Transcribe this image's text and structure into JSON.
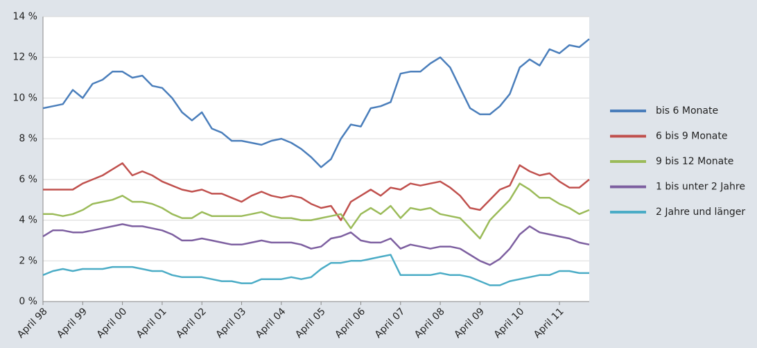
{
  "chart_data": {
    "type": "line",
    "categories": [
      "April 98",
      null,
      null,
      null,
      "April 99",
      null,
      null,
      null,
      "April 00",
      null,
      null,
      null,
      "April 01",
      null,
      null,
      null,
      "April 02",
      null,
      null,
      null,
      "April 03",
      null,
      null,
      null,
      "April 04",
      null,
      null,
      null,
      "April 05",
      null,
      null,
      null,
      "April 06",
      null,
      null,
      null,
      "April 07",
      null,
      null,
      null,
      "April 08",
      null,
      null,
      null,
      "April 09",
      null,
      null,
      null,
      "April 10",
      null,
      null,
      null,
      "April 11",
      null,
      null,
      null
    ],
    "series": [
      {
        "name": "bis 6 Monate",
        "color": "#4a7ebb",
        "values": [
          9.5,
          9.6,
          9.7,
          10.4,
          10.0,
          10.7,
          10.9,
          11.3,
          11.3,
          11.0,
          11.1,
          10.6,
          10.5,
          10.0,
          9.3,
          8.9,
          9.3,
          8.5,
          8.3,
          7.9,
          7.9,
          7.8,
          7.7,
          7.9,
          8.0,
          7.8,
          7.5,
          7.1,
          6.6,
          7.0,
          8.0,
          8.7,
          8.6,
          9.5,
          9.6,
          9.8,
          11.2,
          11.3,
          11.3,
          11.7,
          12.0,
          11.5,
          10.5,
          9.5,
          9.2,
          9.2,
          9.6,
          10.2,
          11.5,
          11.9,
          11.6,
          12.4,
          12.2,
          12.6,
          12.5,
          12.9
        ]
      },
      {
        "name": "6 bis 9 Monate",
        "color": "#c0504d",
        "values": [
          5.5,
          5.5,
          5.5,
          5.5,
          5.8,
          6.0,
          6.2,
          6.5,
          6.8,
          6.2,
          6.4,
          6.2,
          5.9,
          5.7,
          5.5,
          5.4,
          5.5,
          5.3,
          5.3,
          5.1,
          4.9,
          5.2,
          5.4,
          5.2,
          5.1,
          5.2,
          5.1,
          4.8,
          4.6,
          4.7,
          4.0,
          4.9,
          5.2,
          5.5,
          5.2,
          5.6,
          5.5,
          5.8,
          5.7,
          5.8,
          5.9,
          5.6,
          5.2,
          4.6,
          4.5,
          5.0,
          5.5,
          5.7,
          6.7,
          6.4,
          6.2,
          6.3,
          5.9,
          5.6,
          5.6,
          6.0
        ]
      },
      {
        "name": "9 bis 12 Monate",
        "color": "#9bbb59",
        "values": [
          4.3,
          4.3,
          4.2,
          4.3,
          4.5,
          4.8,
          4.9,
          5.0,
          5.2,
          4.9,
          4.9,
          4.8,
          4.6,
          4.3,
          4.1,
          4.1,
          4.4,
          4.2,
          4.2,
          4.2,
          4.2,
          4.3,
          4.4,
          4.2,
          4.1,
          4.1,
          4.0,
          4.0,
          4.1,
          4.2,
          4.3,
          3.6,
          4.3,
          4.6,
          4.3,
          4.7,
          4.1,
          4.6,
          4.5,
          4.6,
          4.3,
          4.2,
          4.1,
          3.6,
          3.1,
          4.0,
          4.5,
          5.0,
          5.8,
          5.5,
          5.1,
          5.1,
          4.8,
          4.6,
          4.3,
          4.5
        ]
      },
      {
        "name": "1 bis unter 2 Jahre",
        "color": "#7d5fa0",
        "values": [
          3.2,
          3.5,
          3.5,
          3.4,
          3.4,
          3.5,
          3.6,
          3.7,
          3.8,
          3.7,
          3.7,
          3.6,
          3.5,
          3.3,
          3.0,
          3.0,
          3.1,
          3.0,
          2.9,
          2.8,
          2.8,
          2.9,
          3.0,
          2.9,
          2.9,
          2.9,
          2.8,
          2.6,
          2.7,
          3.1,
          3.2,
          3.4,
          3.0,
          2.9,
          2.9,
          3.1,
          2.6,
          2.8,
          2.7,
          2.6,
          2.7,
          2.7,
          2.6,
          2.3,
          2.0,
          1.8,
          2.1,
          2.6,
          3.3,
          3.7,
          3.4,
          3.3,
          3.2,
          3.1,
          2.9,
          2.8
        ]
      },
      {
        "name": "2 Jahre und länger",
        "color": "#4bacc6",
        "values": [
          1.3,
          1.5,
          1.6,
          1.5,
          1.6,
          1.6,
          1.6,
          1.7,
          1.7,
          1.7,
          1.6,
          1.5,
          1.5,
          1.3,
          1.2,
          1.2,
          1.2,
          1.1,
          1.0,
          1.0,
          0.9,
          0.9,
          1.1,
          1.1,
          1.1,
          1.2,
          1.1,
          1.2,
          1.6,
          1.9,
          1.9,
          2.0,
          2.0,
          2.1,
          2.2,
          2.3,
          1.3,
          1.3,
          1.3,
          1.3,
          1.4,
          1.3,
          1.3,
          1.2,
          1.0,
          0.8,
          0.8,
          1.0,
          1.1,
          1.2,
          1.3,
          1.3,
          1.5,
          1.5,
          1.4,
          1.4
        ]
      }
    ],
    "ylim": [
      0,
      14
    ],
    "yticks": [
      {
        "value": 0,
        "label": "0 %"
      },
      {
        "value": 2,
        "label": "2 %"
      },
      {
        "value": 4,
        "label": "4 %"
      },
      {
        "value": 6,
        "label": "6 %"
      },
      {
        "value": 8,
        "label": "8 %"
      },
      {
        "value": 10,
        "label": "10 %"
      },
      {
        "value": 12,
        "label": "12 %"
      },
      {
        "value": 14,
        "label": "14 %"
      }
    ],
    "grid": true,
    "legend": "right"
  }
}
